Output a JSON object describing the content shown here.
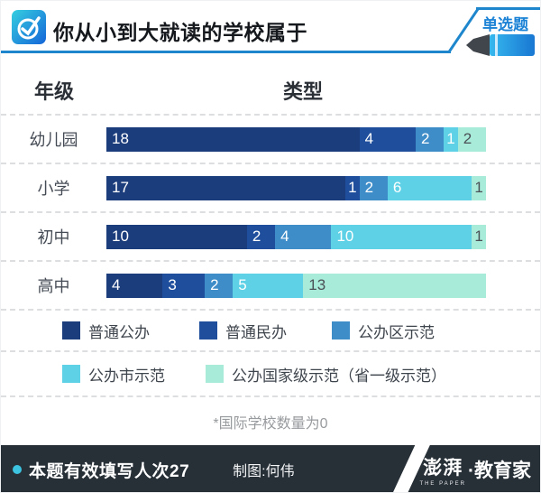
{
  "header": {
    "title": "你从小到大就读的学校属于",
    "badge": "单选题"
  },
  "table": {
    "grade_header": "年级",
    "type_header": "类型"
  },
  "note": {
    "text": "*国际学校数量为0"
  },
  "footer": {
    "stats": "本题有效填写人次27",
    "credit": "制图:何伟",
    "logo_paper": "澎湃",
    "logo_sub": "THE PAPER",
    "logo_right": "·教育家"
  },
  "colors": {
    "accent_blue": "#1d86cc",
    "badge_text": "#1b82d6",
    "footer_bg": "#272f37",
    "mint_label_text": "#4b5057",
    "segment_label_text": "#ffffff"
  },
  "chart_data": {
    "type": "bar",
    "orientation": "horizontal-stacked",
    "title": "你从小到大就读的学校属于",
    "categories": [
      "幼儿园",
      "小学",
      "初中",
      "高中"
    ],
    "series": [
      {
        "name": "普通公办",
        "color": "#1c3d7c",
        "values": [
          18,
          17,
          10,
          4
        ]
      },
      {
        "name": "普通民办",
        "color": "#1f4f9c",
        "values": [
          4,
          1,
          2,
          3
        ]
      },
      {
        "name": "公办区示范",
        "color": "#3e8cc8",
        "values": [
          2,
          2,
          4,
          2
        ]
      },
      {
        "name": "公办市示范",
        "color": "#5ed1e6",
        "values": [
          1,
          6,
          10,
          5
        ]
      },
      {
        "name": "公办国家级示范（省一级示范）",
        "color": "#a8ebd9",
        "values": [
          2,
          1,
          1,
          13
        ]
      }
    ],
    "total_per_category": 27,
    "value_labels_shown": true,
    "note": "*国际学校数量为0",
    "legend_position": "bottom"
  }
}
